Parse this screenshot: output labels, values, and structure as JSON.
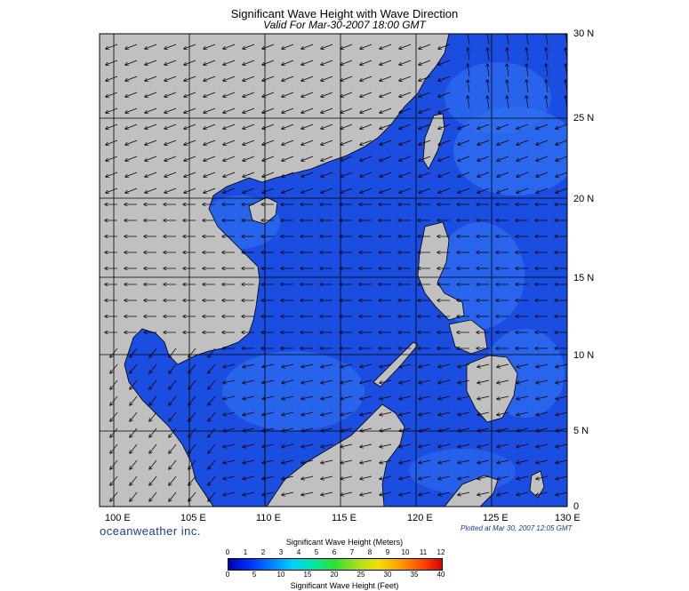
{
  "title": "Significant Wave Height with Wave Direction",
  "subtitle": "Valid For Mar-30-2007 18:00 GMT",
  "lat_labels": [
    "30 N",
    "25 N",
    "20 N",
    "15 N",
    "10 N",
    "5 N",
    "0"
  ],
  "lon_labels": [
    "100 E",
    "105 E",
    "110 E",
    "115 E",
    "120 E",
    "125 E",
    "130 E"
  ],
  "brand": "oceanweather inc.",
  "plotted": "Plotted at Mar 30, 2007 12:05 GMT",
  "legend": {
    "meters_title": "Significant Wave Height (Meters)",
    "feet_title": "Significant Wave Height (Feet)",
    "meters_ticks": [
      "0",
      "1",
      "2",
      "3",
      "4",
      "5",
      "6",
      "7",
      "8",
      "9",
      "10",
      "11",
      "12"
    ],
    "feet_ticks": [
      "0",
      "5",
      "10",
      "15",
      "20",
      "25",
      "30",
      "35",
      "40"
    ]
  },
  "colors": {
    "sea": "#1a4de0",
    "sea_light": "#2f6ef0",
    "sea_dark": "#0a1f9e",
    "land": "#c0c0c0",
    "grid": "#000000",
    "scale": [
      "#0000b0",
      "#0030ff",
      "#0080ff",
      "#00d0ff",
      "#00e8a0",
      "#30e030",
      "#a0e020",
      "#f0e000",
      "#ffa000",
      "#ff5000",
      "#e00000"
    ]
  }
}
